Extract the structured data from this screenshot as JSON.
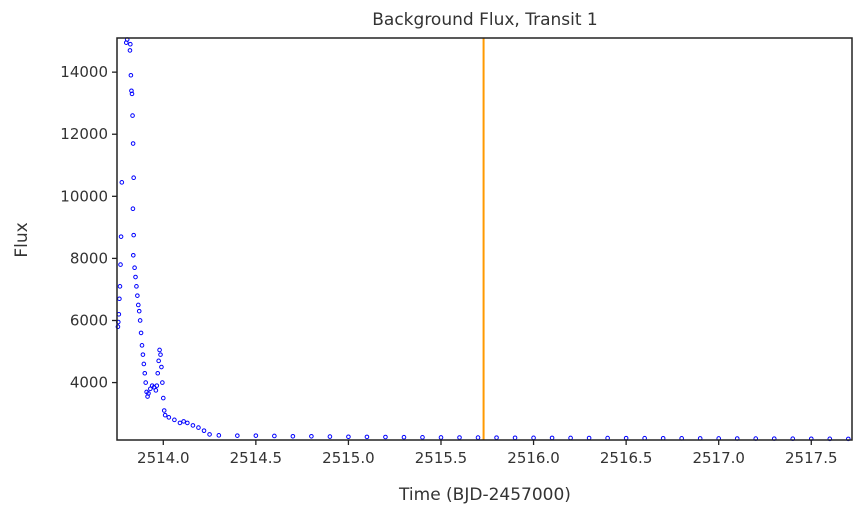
{
  "chart_data": {
    "type": "scatter",
    "title": "Background Flux, Transit 1",
    "xlabel": "Time (BJD-2457000)",
    "ylabel": "Flux",
    "xlim": [
      2513.75,
      2517.72
    ],
    "ylim": [
      2150,
      15100
    ],
    "xticks": [
      "2514.0",
      "2514.5",
      "2515.0",
      "2515.5",
      "2516.0",
      "2516.5",
      "2517.0",
      "2517.5"
    ],
    "yticks": [
      "4000",
      "6000",
      "8000",
      "10000",
      "12000",
      "14000"
    ],
    "grid": false,
    "marker_color": "#0000ff",
    "vline": {
      "x": 2515.73,
      "color": "#ff9900"
    },
    "points": [
      [
        2513.755,
        5800
      ],
      [
        2513.757,
        5950
      ],
      [
        2513.76,
        6200
      ],
      [
        2513.763,
        6700
      ],
      [
        2513.766,
        7100
      ],
      [
        2513.769,
        7800
      ],
      [
        2513.772,
        8700
      ],
      [
        2513.776,
        10450
      ],
      [
        2513.8,
        14950
      ],
      [
        2513.805,
        15050
      ],
      [
        2513.82,
        14700
      ],
      [
        2513.822,
        14900
      ],
      [
        2513.825,
        13900
      ],
      [
        2513.828,
        13400
      ],
      [
        2513.831,
        13300
      ],
      [
        2513.834,
        12600
      ],
      [
        2513.837,
        11700
      ],
      [
        2513.84,
        10600
      ],
      [
        2513.836,
        9600
      ],
      [
        2513.84,
        8750
      ],
      [
        2513.838,
        8100
      ],
      [
        2513.845,
        7700
      ],
      [
        2513.85,
        7400
      ],
      [
        2513.855,
        7100
      ],
      [
        2513.86,
        6800
      ],
      [
        2513.865,
        6500
      ],
      [
        2513.87,
        6300
      ],
      [
        2513.875,
        6000
      ],
      [
        2513.88,
        5600
      ],
      [
        2513.885,
        5200
      ],
      [
        2513.89,
        4900
      ],
      [
        2513.895,
        4600
      ],
      [
        2513.9,
        4300
      ],
      [
        2513.905,
        4000
      ],
      [
        2513.91,
        3700
      ],
      [
        2513.915,
        3550
      ],
      [
        2513.92,
        3650
      ],
      [
        2513.93,
        3800
      ],
      [
        2513.94,
        3900
      ],
      [
        2513.95,
        3850
      ],
      [
        2513.96,
        3750
      ],
      [
        2513.965,
        3900
      ],
      [
        2513.97,
        4300
      ],
      [
        2513.975,
        4700
      ],
      [
        2513.98,
        5050
      ],
      [
        2513.985,
        4900
      ],
      [
        2513.99,
        4500
      ],
      [
        2513.995,
        4000
      ],
      [
        2514.0,
        3500
      ],
      [
        2514.005,
        3100
      ],
      [
        2514.01,
        2950
      ],
      [
        2514.03,
        2880
      ],
      [
        2514.06,
        2800
      ],
      [
        2514.09,
        2700
      ],
      [
        2514.11,
        2750
      ],
      [
        2514.13,
        2700
      ],
      [
        2514.16,
        2620
      ],
      [
        2514.19,
        2550
      ],
      [
        2514.22,
        2450
      ],
      [
        2514.25,
        2330
      ],
      [
        2514.3,
        2300
      ],
      [
        2514.4,
        2290
      ],
      [
        2514.5,
        2290
      ],
      [
        2514.6,
        2280
      ],
      [
        2514.7,
        2270
      ],
      [
        2514.8,
        2270
      ],
      [
        2514.9,
        2260
      ],
      [
        2515.0,
        2255
      ],
      [
        2515.1,
        2250
      ],
      [
        2515.2,
        2245
      ],
      [
        2515.3,
        2240
      ],
      [
        2515.4,
        2235
      ],
      [
        2515.5,
        2232
      ],
      [
        2515.6,
        2230
      ],
      [
        2515.7,
        2228
      ],
      [
        2515.8,
        2225
      ],
      [
        2515.9,
        2222
      ],
      [
        2516.0,
        2220
      ],
      [
        2516.1,
        2218
      ],
      [
        2516.2,
        2216
      ],
      [
        2516.3,
        2214
      ],
      [
        2516.4,
        2212
      ],
      [
        2516.5,
        2210
      ],
      [
        2516.6,
        2208
      ],
      [
        2516.7,
        2206
      ],
      [
        2516.8,
        2204
      ],
      [
        2516.9,
        2202
      ],
      [
        2517.0,
        2200
      ],
      [
        2517.1,
        2198
      ],
      [
        2517.2,
        2196
      ],
      [
        2517.3,
        2194
      ],
      [
        2517.4,
        2192
      ],
      [
        2517.5,
        2190
      ],
      [
        2517.6,
        2188
      ],
      [
        2517.7,
        2186
      ]
    ]
  }
}
